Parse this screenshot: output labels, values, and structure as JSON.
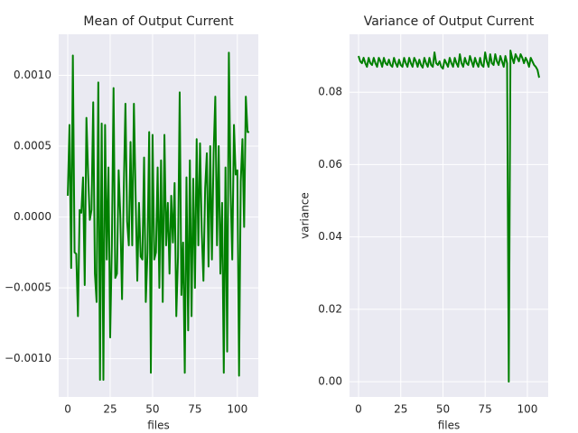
{
  "chart_data": [
    {
      "type": "line",
      "title": "Mean of Output Current",
      "xlabel": "files",
      "color": "#008000",
      "grid": true,
      "x": [
        0,
        1,
        2,
        3,
        4,
        5,
        6,
        7,
        8,
        9,
        10,
        11,
        12,
        13,
        14,
        15,
        16,
        17,
        18,
        19,
        20,
        21,
        22,
        23,
        24,
        25,
        26,
        27,
        28,
        29,
        30,
        31,
        32,
        33,
        34,
        35,
        36,
        37,
        38,
        39,
        40,
        41,
        42,
        43,
        44,
        45,
        46,
        47,
        48,
        49,
        50,
        51,
        52,
        53,
        54,
        55,
        56,
        57,
        58,
        59,
        60,
        61,
        62,
        63,
        64,
        65,
        66,
        67,
        68,
        69,
        70,
        71,
        72,
        73,
        74,
        75,
        76,
        77,
        78,
        79,
        80,
        81,
        82,
        83,
        84,
        85,
        86,
        87,
        88,
        89,
        90,
        91,
        92,
        93,
        94,
        95,
        96,
        97,
        98,
        99,
        100,
        101,
        102,
        103,
        104,
        105,
        106,
        107
      ],
      "values": [
        0.00015,
        0.00065,
        -0.00036,
        0.00114,
        -0.00025,
        -0.00026,
        -0.0007,
        5e-05,
        3e-05,
        0.00028,
        -0.00048,
        0.0007,
        0.0003,
        -2e-05,
        5e-05,
        0.00081,
        -0.0004,
        -0.0006,
        0.00095,
        -0.00115,
        0.00066,
        -0.00115,
        0.00065,
        -0.0003,
        0.00035,
        -0.00085,
        -0.0002,
        0.00091,
        -0.00043,
        -0.0004,
        0.00033,
        0.0,
        -0.00058,
        0.00018,
        0.0008,
        -3e-05,
        -0.0002,
        0.00053,
        -0.0002,
        0.0008,
        0.00015,
        -0.00045,
        0.0001,
        -0.00028,
        -0.0003,
        0.00042,
        -0.0006,
        -0.00025,
        0.0006,
        -0.0011,
        0.00058,
        -0.0003,
        -0.00025,
        0.00035,
        -0.0005,
        0.0004,
        -0.0006,
        0.00058,
        -0.0002,
        0.0001,
        -0.0004,
        0.00015,
        -0.00018,
        0.00024,
        -0.0007,
        -0.00028,
        0.00088,
        -0.00055,
        -0.00018,
        -0.0011,
        0.00028,
        -0.0008,
        0.0004,
        -0.0007,
        0.00027,
        -0.0005,
        0.00055,
        -0.0002,
        0.00052,
        -0.0001,
        -0.00045,
        0.0002,
        0.00045,
        -0.00035,
        0.0005,
        -0.0003,
        0.00045,
        0.00085,
        -0.0002,
        0.0005,
        -0.0004,
        0.0001,
        -0.0011,
        0.00035,
        -0.00095,
        0.00116,
        0.0002,
        -0.0003,
        0.00065,
        0.0003,
        0.00033,
        -0.00112,
        0.00025,
        0.00055,
        -7e-05,
        0.00085,
        0.0006,
        0.0006
      ],
      "xlim": [
        -5.35,
        112.35
      ],
      "xticks": [
        0,
        25,
        50,
        75,
        100
      ],
      "ylim": [
        -0.00127,
        0.00129
      ],
      "yticks": [
        {
          "value": -0.001,
          "label": "−0.0010"
        },
        {
          "value": -0.0005,
          "label": "−0.0005"
        },
        {
          "value": 0,
          "label": "0.0000"
        },
        {
          "value": 0.0005,
          "label": "0.0005"
        },
        {
          "value": 0.001,
          "label": "0.0010"
        }
      ]
    },
    {
      "type": "line",
      "title": "Variance of Output Current",
      "xlabel": "files",
      "ylabel": "variance",
      "color": "#008000",
      "grid": true,
      "x": [
        0,
        1,
        2,
        3,
        4,
        5,
        6,
        7,
        8,
        9,
        10,
        11,
        12,
        13,
        14,
        15,
        16,
        17,
        18,
        19,
        20,
        21,
        22,
        23,
        24,
        25,
        26,
        27,
        28,
        29,
        30,
        31,
        32,
        33,
        34,
        35,
        36,
        37,
        38,
        39,
        40,
        41,
        42,
        43,
        44,
        45,
        46,
        47,
        48,
        49,
        50,
        51,
        52,
        53,
        54,
        55,
        56,
        57,
        58,
        59,
        60,
        61,
        62,
        63,
        64,
        65,
        66,
        67,
        68,
        69,
        70,
        71,
        72,
        73,
        74,
        75,
        76,
        77,
        78,
        79,
        80,
        81,
        82,
        83,
        84,
        85,
        86,
        87,
        88,
        89,
        90,
        91,
        92,
        93,
        94,
        95,
        96,
        97,
        98,
        99,
        100,
        101,
        102,
        103,
        104,
        105,
        106,
        107
      ],
      "values": [
        0.09,
        0.0885,
        0.088,
        0.0895,
        0.088,
        0.087,
        0.0895,
        0.088,
        0.0875,
        0.0895,
        0.088,
        0.087,
        0.0895,
        0.0885,
        0.087,
        0.0895,
        0.088,
        0.0875,
        0.089,
        0.0875,
        0.087,
        0.0895,
        0.088,
        0.087,
        0.089,
        0.0875,
        0.087,
        0.0895,
        0.088,
        0.087,
        0.0895,
        0.088,
        0.087,
        0.0895,
        0.0885,
        0.087,
        0.089,
        0.0875,
        0.0868,
        0.0895,
        0.088,
        0.087,
        0.0895,
        0.0875,
        0.087,
        0.091,
        0.088,
        0.0875,
        0.0885,
        0.087,
        0.0865,
        0.089,
        0.088,
        0.087,
        0.0895,
        0.088,
        0.087,
        0.0895,
        0.088,
        0.087,
        0.0905,
        0.088,
        0.087,
        0.0895,
        0.088,
        0.0875,
        0.09,
        0.0885,
        0.087,
        0.0895,
        0.088,
        0.087,
        0.0895,
        0.0875,
        0.087,
        0.091,
        0.0885,
        0.087,
        0.0905,
        0.088,
        0.0875,
        0.0905,
        0.0885,
        0.0875,
        0.09,
        0.0885,
        0.087,
        0.09,
        0.088,
        0.0,
        0.0915,
        0.0895,
        0.088,
        0.0905,
        0.0895,
        0.0885,
        0.0905,
        0.0895,
        0.088,
        0.0895,
        0.0885,
        0.087,
        0.0895,
        0.0885,
        0.0875,
        0.087,
        0.0862,
        0.084
      ],
      "xlim": [
        -5.35,
        112.35
      ],
      "xticks": [
        0,
        25,
        50,
        75,
        100
      ],
      "ylim": [
        -0.0042,
        0.096
      ],
      "yticks": [
        {
          "value": 0,
          "label": "0.00"
        },
        {
          "value": 0.02,
          "label": "0.02"
        },
        {
          "value": 0.04,
          "label": "0.04"
        },
        {
          "value": 0.06,
          "label": "0.06"
        },
        {
          "value": 0.08,
          "label": "0.08"
        }
      ]
    }
  ]
}
